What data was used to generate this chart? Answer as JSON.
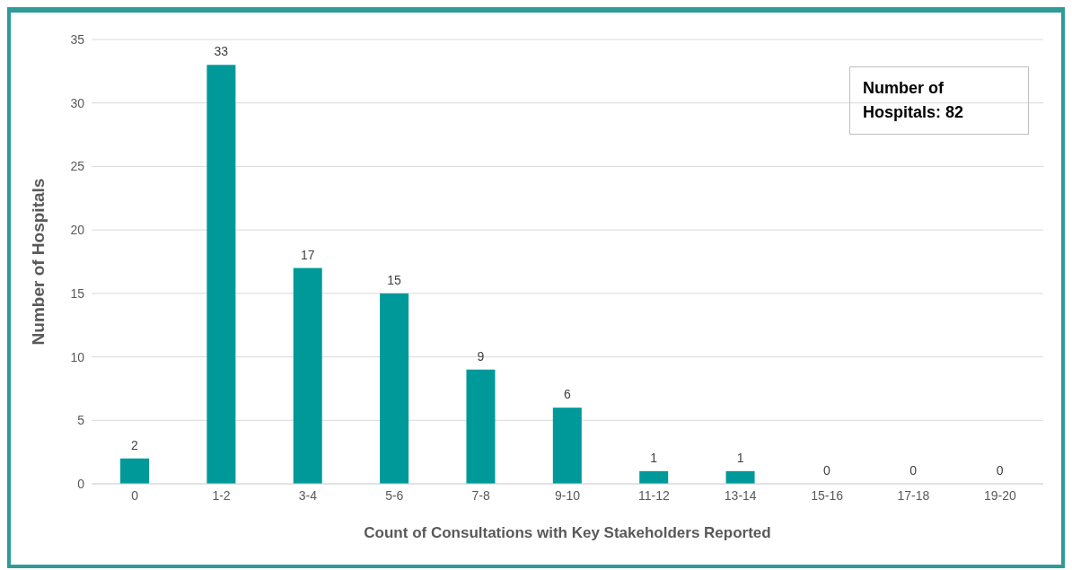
{
  "chart_data": {
    "type": "bar",
    "xlabel": "Count of Consultations with Key Stakeholders Reported",
    "ylabel": "Number of Hospitals",
    "categories": [
      "0",
      "1-2",
      "3-4",
      "5-6",
      "7-8",
      "9-10",
      "11-12",
      "13-14",
      "15-16",
      "17-18",
      "19-20"
    ],
    "values": [
      2,
      33,
      17,
      15,
      9,
      6,
      1,
      1,
      0,
      0,
      0
    ],
    "color": "#009999",
    "ylim": [
      0,
      35
    ],
    "yticks": [
      0,
      5,
      10,
      15,
      20,
      25,
      30,
      35
    ],
    "grid": "y",
    "data_labels": true,
    "annotations": [
      "Number of Hospitals: 82"
    ]
  }
}
